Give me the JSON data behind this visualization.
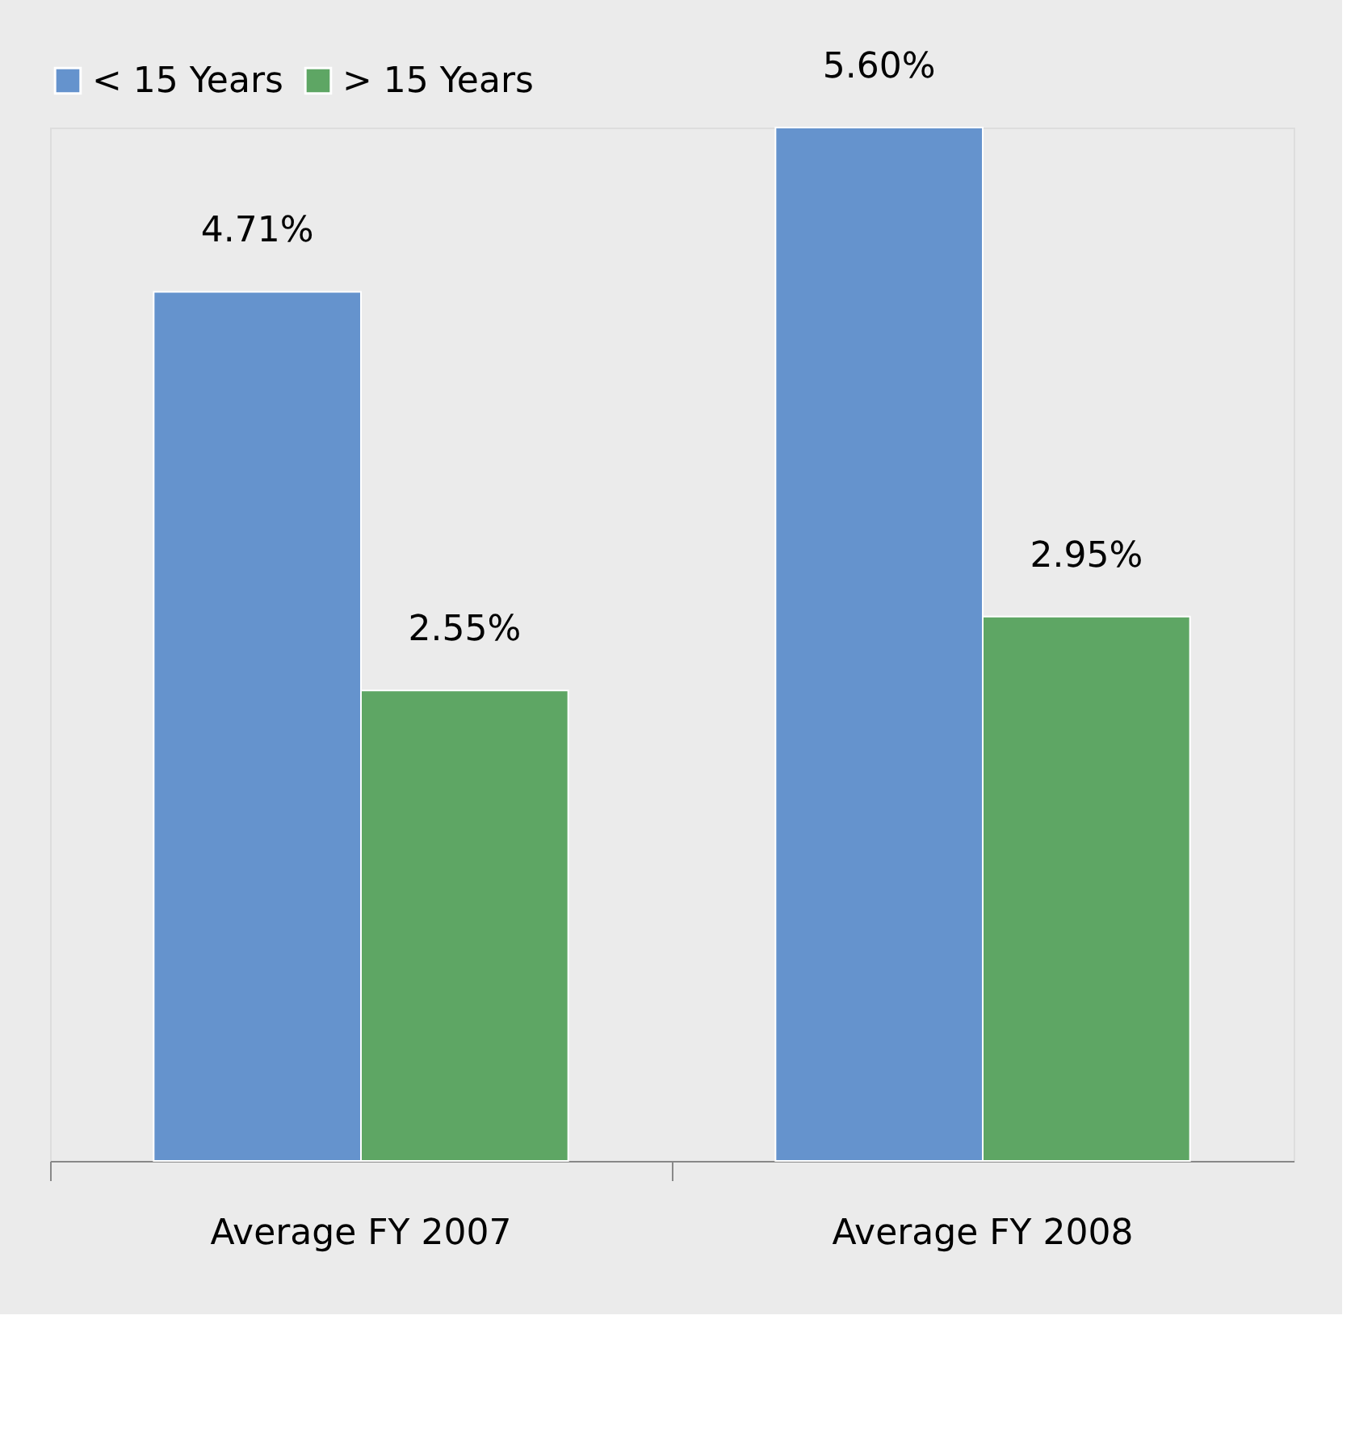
{
  "chart_data": {
    "type": "bar",
    "categories": [
      "Average FY 2007",
      "Average FY 2008"
    ],
    "series": [
      {
        "name": "< 15 Years",
        "color": "#6593cd",
        "values": [
          4.71,
          5.6
        ],
        "value_labels": [
          "4.71%",
          "5.60%"
        ]
      },
      {
        "name": "> 15 Years",
        "color": "#5ea664",
        "values": [
          2.55,
          2.95
        ],
        "value_labels": [
          "2.55%",
          "2.95%"
        ]
      }
    ],
    "legend": "top",
    "grid": false,
    "tick_labels": "x"
  }
}
